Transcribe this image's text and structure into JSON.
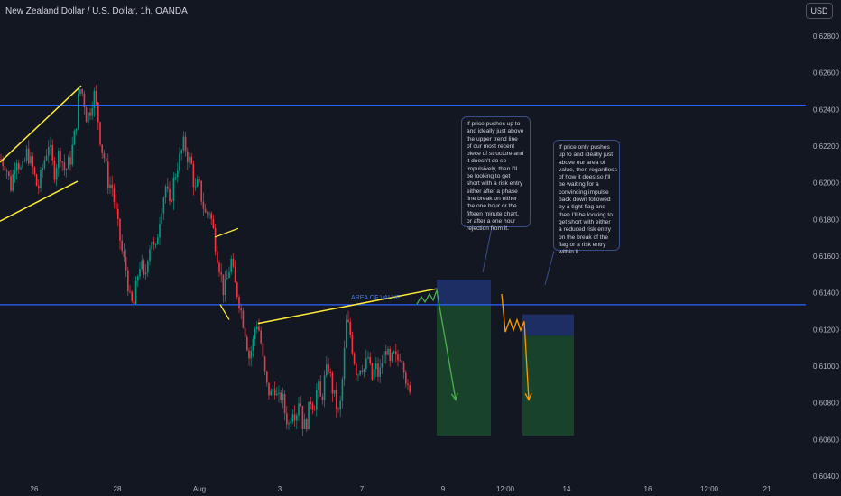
{
  "header": {
    "title": "New Zealand Dollar / U.S. Dollar, 1h, OANDA",
    "currency_button": "USD"
  },
  "colors": {
    "background": "#131722",
    "up_candle": "#089981",
    "down_candle": "#f23645",
    "horizontal_line": "#2962ff",
    "trendline": "#ffeb3b",
    "target_zone": "#1b4d2e",
    "stop_zone": "#1e3270",
    "projection_green": "#4caf50",
    "projection_orange": "#ff9800"
  },
  "annotations": {
    "area_of_value": "AREA OF VALUE",
    "note_1": [
      "If price pushes up to",
      "and ideally just above",
      "the upper trend line",
      "of our most recent",
      "piece of structure and",
      "it doesn't do so",
      "impulsively, then I'll",
      "be looking to get",
      "short with a risk entry",
      "either after a phase",
      "line break on either",
      "the one hour or the",
      "fifteen minute chart,",
      "or after a one hour",
      "rejection from it."
    ],
    "note_2": [
      "If price only pushes",
      "up to and ideally just",
      "above our area of",
      "value, then regardless",
      "of how it does so I'll",
      "be waiting for a",
      "convincing impulse",
      "back down followed",
      "by a tight flag and",
      "then I'll be looking to",
      "get short with either",
      "a reduced risk entry",
      "on the break of the",
      "flag or a risk entry",
      "within it."
    ]
  },
  "chart_data": {
    "type": "candlestick",
    "symbol": "New Zealand Dollar / U.S. Dollar, 1h, OANDA",
    "y_axis": {
      "range": [
        0.604,
        0.6296
      ],
      "ticks": [
        "0.62800",
        "0.62600",
        "0.62400",
        "0.62200",
        "0.62000",
        "0.61800",
        "0.61600",
        "0.61400",
        "0.61200",
        "0.61000",
        "0.60800",
        "0.60600",
        "0.60400"
      ]
    },
    "x_axis": {
      "ticks": [
        "26",
        "28",
        "Aug",
        "3",
        "7",
        "9",
        "12:00",
        "14",
        "16",
        "12:00",
        "21"
      ]
    },
    "price_path": [
      [
        0,
        0.6213
      ],
      [
        6,
        0.621
      ],
      [
        12,
        0.6198
      ],
      [
        18,
        0.6215
      ],
      [
        24,
        0.6205
      ],
      [
        30,
        0.6217
      ],
      [
        36,
        0.6208
      ],
      [
        42,
        0.6196
      ],
      [
        48,
        0.621
      ],
      [
        54,
        0.6222
      ],
      [
        60,
        0.6205
      ],
      [
        66,
        0.6218
      ],
      [
        72,
        0.6206
      ],
      [
        78,
        0.6213
      ],
      [
        84,
        0.623
      ],
      [
        88,
        0.6252
      ],
      [
        92,
        0.6248
      ],
      [
        96,
        0.6235
      ],
      [
        100,
        0.624
      ],
      [
        104,
        0.6249
      ],
      [
        108,
        0.6238
      ],
      [
        112,
        0.622
      ],
      [
        116,
        0.6213
      ],
      [
        120,
        0.62
      ],
      [
        124,
        0.6198
      ],
      [
        128,
        0.6185
      ],
      [
        132,
        0.6172
      ],
      [
        136,
        0.616
      ],
      [
        140,
        0.6152
      ],
      [
        144,
        0.6136
      ],
      [
        148,
        0.6132
      ],
      [
        152,
        0.6148
      ],
      [
        156,
        0.6158
      ],
      [
        160,
        0.6145
      ],
      [
        164,
        0.6162
      ],
      [
        168,
        0.617
      ],
      [
        172,
        0.616
      ],
      [
        176,
        0.6178
      ],
      [
        180,
        0.619
      ],
      [
        184,
        0.6199
      ],
      [
        188,
        0.6186
      ],
      [
        192,
        0.62
      ],
      [
        196,
        0.6208
      ],
      [
        200,
        0.6215
      ],
      [
        204,
        0.6222
      ],
      [
        208,
        0.6214
      ],
      [
        212,
        0.621
      ],
      [
        216,
        0.6195
      ],
      [
        220,
        0.62
      ],
      [
        224,
        0.619
      ],
      [
        228,
        0.6182
      ],
      [
        232,
        0.6185
      ],
      [
        236,
        0.6175
      ],
      [
        240,
        0.6163
      ],
      [
        244,
        0.6152
      ],
      [
        248,
        0.614
      ],
      [
        252,
        0.6148
      ],
      [
        256,
        0.6158
      ],
      [
        260,
        0.6145
      ],
      [
        264,
        0.6138
      ],
      [
        268,
        0.6128
      ],
      [
        272,
        0.6118
      ],
      [
        276,
        0.6105
      ],
      [
        280,
        0.6112
      ],
      [
        284,
        0.6125
      ],
      [
        288,
        0.6118
      ],
      [
        292,
        0.61
      ],
      [
        296,
        0.6088
      ],
      [
        300,
        0.6084
      ],
      [
        304,
        0.609
      ],
      [
        308,
        0.608
      ],
      [
        312,
        0.6085
      ],
      [
        316,
        0.6074
      ],
      [
        320,
        0.6068
      ],
      [
        324,
        0.6078
      ],
      [
        328,
        0.6073
      ],
      [
        332,
        0.6085
      ],
      [
        336,
        0.6066
      ],
      [
        340,
        0.607
      ],
      [
        344,
        0.6082
      ],
      [
        348,
        0.6078
      ],
      [
        352,
        0.609
      ],
      [
        356,
        0.608
      ],
      [
        360,
        0.6094
      ],
      [
        364,
        0.61
      ],
      [
        368,
        0.6088
      ],
      [
        372,
        0.608
      ],
      [
        376,
        0.6072
      ],
      [
        380,
        0.6096
      ],
      [
        384,
        0.6125
      ],
      [
        388,
        0.6118
      ],
      [
        392,
        0.6105
      ],
      [
        396,
        0.6095
      ],
      [
        400,
        0.6102
      ],
      [
        404,
        0.6098
      ],
      [
        408,
        0.6105
      ],
      [
        412,
        0.6092
      ],
      [
        416,
        0.61
      ],
      [
        420,
        0.6094
      ],
      [
        424,
        0.6104
      ],
      [
        428,
        0.611
      ],
      [
        432,
        0.61
      ],
      [
        436,
        0.6106
      ],
      [
        440,
        0.6102
      ],
      [
        444,
        0.6108
      ],
      [
        448,
        0.61
      ],
      [
        452,
        0.6086
      ],
      [
        456,
        0.6081
      ]
    ],
    "horizontal_levels": [
      0.62423,
      0.61335
    ],
    "trend_channel_upper": [
      [
        0,
        0.62112
      ],
      [
        90,
        0.62529
      ]
    ],
    "trend_channel_lower": [
      [
        0,
        0.61791
      ],
      [
        86,
        0.62008
      ]
    ],
    "ascending_trendline": [
      [
        286,
        0.61233
      ],
      [
        484,
        0.61422
      ]
    ],
    "flag_lines": [
      [
        [
          238,
          0.61703
        ],
        [
          264,
          0.61751
        ]
      ],
      [
        [
          244,
          0.61336
        ],
        [
          254,
          0.61253
        ]
      ]
    ],
    "trade_zones": [
      {
        "x_from": 484,
        "x_to": 544,
        "stop_top": 0.61472,
        "entry": 0.61335,
        "target": 0.60621
      },
      {
        "x_from": 579,
        "x_to": 636,
        "stop_top": 0.61282,
        "entry": 0.61166,
        "target": 0.60621
      }
    ],
    "projection_paths": [
      {
        "color": "green",
        "points": [
          [
            462,
            0.61339
          ],
          [
            467,
            0.61379
          ],
          [
            471,
            0.6135
          ],
          [
            476,
            0.61394
          ],
          [
            480,
            0.6136
          ],
          [
            484,
            0.61413
          ],
          [
            505,
            0.60816
          ]
        ]
      },
      {
        "color": "orange",
        "points": [
          [
            556,
            0.61394
          ],
          [
            560,
            0.61186
          ],
          [
            565,
            0.61253
          ],
          [
            569,
            0.61195
          ],
          [
            573,
            0.61253
          ],
          [
            577,
            0.61195
          ],
          [
            581,
            0.61244
          ],
          [
            586,
            0.60816
          ]
        ]
      }
    ]
  }
}
